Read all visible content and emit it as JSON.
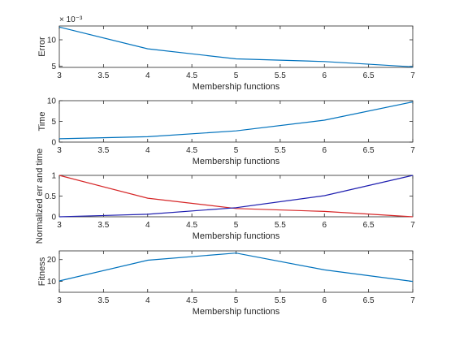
{
  "chart_data": [
    {
      "type": "line",
      "xlabel": "Membership functions",
      "ylabel": "Error",
      "exponent_label": "× 10⁻³",
      "xlim": [
        3,
        7
      ],
      "ylim": [
        4.8,
        12.6
      ],
      "xticks": [
        3,
        3.5,
        4,
        4.5,
        5,
        5.5,
        6,
        6.5,
        7
      ],
      "yticks": [
        5,
        10
      ],
      "series": [
        {
          "color": "#0072BD",
          "x": [
            3,
            4,
            5,
            6,
            7
          ],
          "y": [
            12.4,
            8.3,
            6.4,
            5.9,
            4.9
          ]
        }
      ]
    },
    {
      "type": "line",
      "xlabel": "Membership functions",
      "ylabel": "Time",
      "xlim": [
        3,
        7
      ],
      "ylim": [
        0,
        10
      ],
      "xticks": [
        3,
        3.5,
        4,
        4.5,
        5,
        5.5,
        6,
        6.5,
        7
      ],
      "yticks": [
        0,
        5,
        10
      ],
      "series": [
        {
          "color": "#0072BD",
          "x": [
            3,
            4,
            5,
            6,
            7
          ],
          "y": [
            0.8,
            1.3,
            2.7,
            5.3,
            9.7
          ]
        }
      ]
    },
    {
      "type": "line",
      "xlabel": "Membership functions",
      "ylabel": "Normalized err and time",
      "xlim": [
        3,
        7
      ],
      "ylim": [
        0,
        1
      ],
      "xticks": [
        3,
        3.5,
        4,
        4.5,
        5,
        5.5,
        6,
        6.5,
        7
      ],
      "yticks": [
        0,
        0.5,
        1
      ],
      "series": [
        {
          "color": "#D62728",
          "x": [
            3,
            4,
            5,
            6,
            7
          ],
          "y": [
            1,
            0.45,
            0.2,
            0.13,
            0
          ]
        },
        {
          "color": "#1F1FB0",
          "x": [
            3,
            4,
            5,
            6,
            7
          ],
          "y": [
            0,
            0.06,
            0.22,
            0.51,
            1
          ]
        }
      ]
    },
    {
      "type": "line",
      "xlabel": "Membership functions",
      "ylabel": "Fitness",
      "xlim": [
        3,
        7
      ],
      "ylim": [
        5,
        24
      ],
      "xticks": [
        3,
        3.5,
        4,
        4.5,
        5,
        5.5,
        6,
        6.5,
        7
      ],
      "yticks": [
        10,
        20
      ],
      "series": [
        {
          "color": "#0072BD",
          "x": [
            3,
            4,
            5,
            6,
            7
          ],
          "y": [
            10.2,
            19.7,
            23.0,
            15.3,
            10.0
          ]
        }
      ]
    }
  ]
}
